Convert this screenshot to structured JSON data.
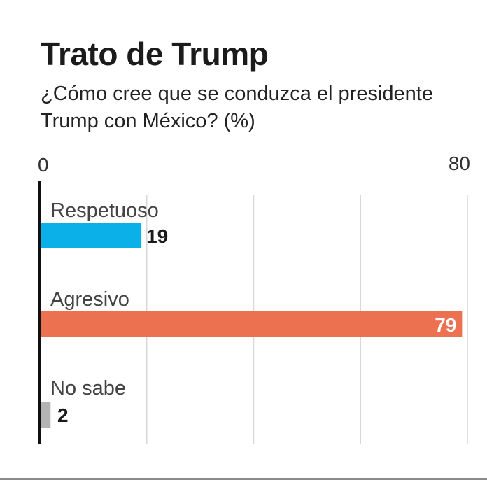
{
  "chart_data": {
    "type": "bar",
    "orientation": "horizontal",
    "title": "Trato de Trump",
    "subtitle": "¿Cómo cree que se conduzca el presidente Trump con México? (%)",
    "xlim": [
      0,
      80
    ],
    "x_ticks": [
      "0",
      "80"
    ],
    "grid_values": [
      20,
      40,
      60,
      80
    ],
    "categories": [
      "Respetuoso",
      "Agresivo",
      "No sabe"
    ],
    "values": [
      19,
      79,
      2
    ],
    "value_labels": [
      "19",
      "79",
      "2"
    ],
    "colors": [
      "#0cb0e8",
      "#ec7150",
      "#b4b4b4"
    ],
    "grid": true
  }
}
